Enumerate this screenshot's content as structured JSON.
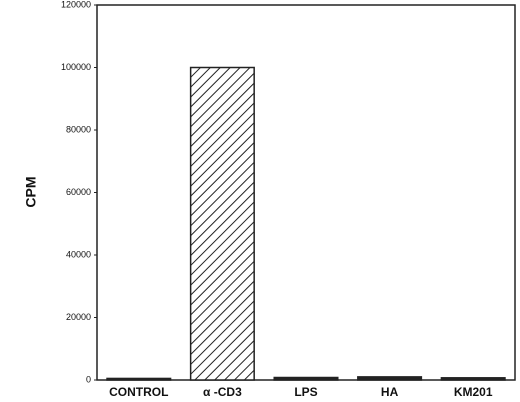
{
  "chart_data": {
    "type": "bar",
    "y_label": "CPM",
    "categories": [
      "CONTROL",
      "α -CD3",
      "LPS",
      "HA",
      "KM201"
    ],
    "values": [
      500,
      100000,
      800,
      1000,
      700
    ],
    "bar_styles": [
      "solid",
      "hatched",
      "solid",
      "solid",
      "solid"
    ],
    "color": "#222222",
    "ylim": [
      0,
      120000
    ],
    "yticks": [
      0,
      20000,
      40000,
      60000,
      80000,
      100000,
      120000
    ],
    "grid": false
  }
}
